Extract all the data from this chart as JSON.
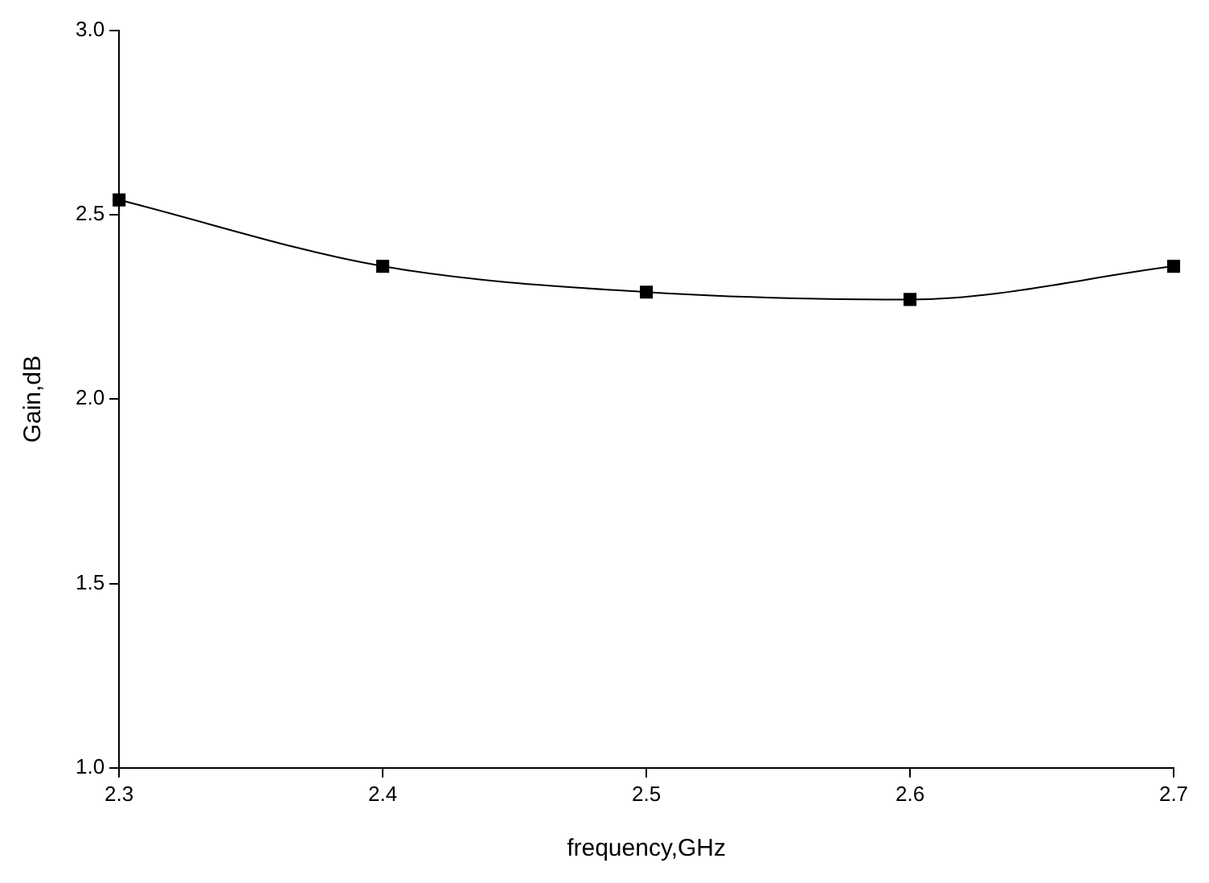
{
  "chart_data": {
    "type": "line",
    "xlabel": "frequency,GHz",
    "ylabel": "Gain,dB",
    "x": [
      2.3,
      2.4,
      2.5,
      2.6,
      2.7
    ],
    "series": [
      {
        "color": "#000000",
        "values": [
          2.54,
          2.36,
          2.29,
          2.27,
          2.36
        ]
      }
    ],
    "xlim": [
      2.3,
      2.7
    ],
    "xticks": [
      2.3,
      2.4,
      2.5,
      2.6,
      2.7
    ],
    "ylim": [
      1.0,
      3.0
    ],
    "yticks": [
      {
        "value": 1.0,
        "label": "1.0"
      },
      {
        "value": 1.5,
        "label": "1.5"
      },
      {
        "value": 2.0,
        "label": "2.0"
      },
      {
        "value": 2.5,
        "label": "2.5"
      },
      {
        "value": 3.0,
        "label": "3.0"
      }
    ],
    "marker": "square",
    "line_style": "solid",
    "legend": false
  }
}
